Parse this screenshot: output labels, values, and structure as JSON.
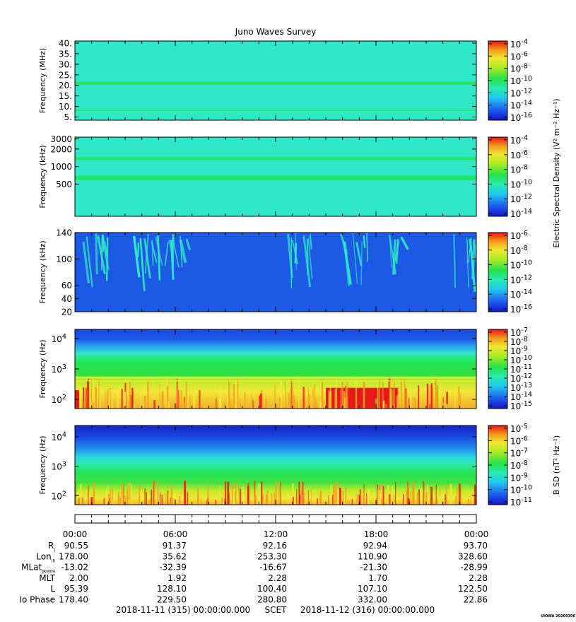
{
  "title": "Juno Waves Survey",
  "watermark": "UIOWA 20200306",
  "colors": {
    "background_cyan": "#2ee8c8",
    "band_green": "#22e65c",
    "deep_blue": "#1c5ae6",
    "dark_blue": "#1030d8",
    "yellow": "#f2e838",
    "orange": "#f2a020",
    "red": "#e81818"
  },
  "chart_data": [
    {
      "id": "panel1",
      "type": "heatmap",
      "ylabel": "Frequency (MHz)",
      "yscale": "linear",
      "ylim": [
        3.5,
        41
      ],
      "y_ticks": [
        {
          "label": "40.",
          "value": 40
        },
        {
          "label": "35.",
          "value": 35
        },
        {
          "label": "30.",
          "value": 30
        },
        {
          "label": "25.",
          "value": 25
        },
        {
          "label": "20.",
          "value": 20
        },
        {
          "label": "15.",
          "value": 15
        },
        {
          "label": "10.",
          "value": 10
        },
        {
          "label": "5.",
          "value": 5
        }
      ],
      "features": [
        {
          "kind": "band",
          "y_from": 20.3,
          "y_to": 21.8,
          "color": "band_green"
        },
        {
          "kind": "band",
          "y_from": 8.0,
          "y_to": 8.6,
          "color": "band_green"
        }
      ],
      "colorbar": {
        "ticks": [
          {
            "base": "10",
            "exp": "-4"
          },
          {
            "base": "10",
            "exp": "-6"
          },
          {
            "base": "10",
            "exp": "-8"
          },
          {
            "base": "10",
            "exp": "-10"
          },
          {
            "base": "10",
            "exp": "-12"
          },
          {
            "base": "10",
            "exp": "-14"
          },
          {
            "base": "10",
            "exp": "-16"
          }
        ]
      }
    },
    {
      "id": "panel2",
      "type": "heatmap",
      "ylabel": "Frequency (kHz)",
      "yscale": "log",
      "ylim": [
        140,
        3200
      ],
      "y_ticks": [
        {
          "label": "3000",
          "value": 3000
        },
        {
          "label": "2000",
          "value": 2000
        },
        {
          "label": "1000",
          "value": 1000
        },
        {
          "label": "500",
          "value": 500
        }
      ],
      "features": [
        {
          "kind": "band",
          "y_from": 1290,
          "y_to": 1450,
          "color": "band_green"
        },
        {
          "kind": "band",
          "y_from": 590,
          "y_to": 700,
          "color": "band_green"
        }
      ],
      "colorbar": {
        "ticks": [
          {
            "base": "10",
            "exp": "-4"
          },
          {
            "base": "10",
            "exp": "-6"
          },
          {
            "base": "10",
            "exp": "-8"
          },
          {
            "base": "10",
            "exp": "-10"
          },
          {
            "base": "10",
            "exp": "-12"
          },
          {
            "base": "10",
            "exp": "-14"
          }
        ]
      }
    },
    {
      "id": "panel3",
      "type": "heatmap",
      "ylabel": "Frequency (kHz)",
      "yscale": "linear",
      "ylim": [
        20,
        140
      ],
      "y_ticks": [
        {
          "label": "140",
          "value": 140
        },
        {
          "label": "100",
          "value": 100
        },
        {
          "label": "60",
          "value": 60
        },
        {
          "label": "40",
          "value": 40
        },
        {
          "label": "20",
          "value": 20
        }
      ],
      "features": [
        {
          "kind": "bursts",
          "from_hour": 0.2,
          "to_hour": 2.0,
          "color": "background_cyan"
        },
        {
          "kind": "bursts",
          "from_hour": 3.5,
          "to_hour": 7.0,
          "color": "background_cyan"
        },
        {
          "kind": "bursts",
          "from_hour": 12.5,
          "to_hour": 14.5,
          "color": "background_cyan"
        },
        {
          "kind": "bursts",
          "from_hour": 15.5,
          "to_hour": 17.5,
          "color": "background_cyan"
        },
        {
          "kind": "bursts",
          "from_hour": 18.5,
          "to_hour": 19.8,
          "color": "background_cyan"
        },
        {
          "kind": "bursts",
          "from_hour": 22.5,
          "to_hour": 23.9,
          "color": "background_cyan"
        }
      ],
      "colorbar": {
        "label": "Electric Spectral Density (V² m⁻² Hz⁻¹)",
        "ticks": [
          {
            "base": "10",
            "exp": "-6"
          },
          {
            "base": "10",
            "exp": "-8"
          },
          {
            "base": "10",
            "exp": "-10"
          },
          {
            "base": "10",
            "exp": "-12"
          },
          {
            "base": "10",
            "exp": "-14"
          },
          {
            "base": "10",
            "exp": "-16"
          }
        ]
      }
    },
    {
      "id": "panel4",
      "type": "heatmap",
      "ylabel": "Frequency (Hz)",
      "yscale": "log",
      "ylim": [
        50,
        20000
      ],
      "y_ticks": [
        {
          "base": "10",
          "exp": "4",
          "value": 10000
        },
        {
          "base": "10",
          "exp": "3",
          "value": 1000
        },
        {
          "base": "10",
          "exp": "2",
          "value": 100
        }
      ],
      "features": [
        {
          "kind": "layer",
          "y_from": 3000,
          "y_to": 20000,
          "color": "deep_blue"
        },
        {
          "kind": "layer",
          "y_from": 1500,
          "y_to": 3000,
          "color": "background_cyan"
        },
        {
          "kind": "layer",
          "y_from": 300,
          "y_to": 1500,
          "color": "band_green"
        },
        {
          "kind": "layer",
          "y_from": 50,
          "y_to": 300,
          "color": "yellow"
        },
        {
          "kind": "block",
          "from_hour": 15.0,
          "to_hour": 19.3,
          "y_from": 50,
          "y_to": 240,
          "color": "red"
        },
        {
          "kind": "block",
          "from_hour": 0.0,
          "to_hour": 0.25,
          "y_from": 50,
          "y_to": 200,
          "color": "red"
        }
      ],
      "colorbar": {
        "ticks": [
          {
            "base": "10",
            "exp": "-7"
          },
          {
            "base": "10",
            "exp": "-8"
          },
          {
            "base": "10",
            "exp": "-9"
          },
          {
            "base": "10",
            "exp": "-10"
          },
          {
            "base": "10",
            "exp": "-11"
          },
          {
            "base": "10",
            "exp": "-12"
          },
          {
            "base": "10",
            "exp": "-13"
          },
          {
            "base": "10",
            "exp": "-14"
          },
          {
            "base": "10",
            "exp": "-15"
          }
        ]
      }
    },
    {
      "id": "panel5",
      "type": "heatmap",
      "ylabel": "Frequency (Hz)",
      "yscale": "log",
      "ylim": [
        50,
        24000
      ],
      "y_ticks": [
        {
          "base": "10",
          "exp": "4",
          "value": 10000
        },
        {
          "base": "10",
          "exp": "3",
          "value": 1000
        },
        {
          "base": "10",
          "exp": "2",
          "value": 100
        }
      ],
      "features": [
        {
          "kind": "layer",
          "y_from": 9000,
          "y_to": 24000,
          "color": "dark_blue"
        },
        {
          "kind": "layer",
          "y_from": 3500,
          "y_to": 9000,
          "color": "deep_blue"
        },
        {
          "kind": "layer",
          "y_from": 1500,
          "y_to": 3500,
          "color": "background_cyan"
        },
        {
          "kind": "layer",
          "y_from": 200,
          "y_to": 1500,
          "color": "band_green"
        },
        {
          "kind": "layer",
          "y_from": 50,
          "y_to": 200,
          "color": "yellow"
        }
      ],
      "colorbar": {
        "label": "B SD (nT² Hz⁻¹)",
        "ticks": [
          {
            "base": "10",
            "exp": "-5"
          },
          {
            "base": "10",
            "exp": "-6"
          },
          {
            "base": "10",
            "exp": "-7"
          },
          {
            "base": "10",
            "exp": "-8"
          },
          {
            "base": "10",
            "exp": "-9"
          },
          {
            "base": "10",
            "exp": "-10"
          },
          {
            "base": "10",
            "exp": "-11"
          }
        ]
      }
    }
  ],
  "time_axis": {
    "hours": [
      0,
      6,
      12,
      18,
      24
    ],
    "tick_labels": [
      "00:00",
      "06:00",
      "12:00",
      "18:00",
      "00:00"
    ]
  },
  "ephemeris": [
    {
      "label": "R",
      "sub": "J",
      "values": [
        "90.55",
        "91.37",
        "92.16",
        "92.94",
        "93.70"
      ]
    },
    {
      "label": "Lon",
      "sub": "III",
      "values": [
        "178.00",
        "35.62",
        "253.30",
        "110.90",
        "328.60"
      ]
    },
    {
      "label": "MLat",
      "sub": "JRM09",
      "values": [
        "-13.02",
        "-32.39",
        "-16.67",
        "-21.30",
        "-28.99"
      ]
    },
    {
      "label": "MLT",
      "sub": "",
      "values": [
        "2.00",
        "1.92",
        "2.28",
        "1.70",
        "2.28"
      ]
    },
    {
      "label": "L",
      "sub": "",
      "values": [
        "95.39",
        "128.10",
        "100.40",
        "107.10",
        "122.50"
      ]
    },
    {
      "label": "Io Phase",
      "sub": "",
      "values": [
        "178.40",
        "229.50",
        "280.80",
        "332.00",
        "22.86"
      ]
    }
  ],
  "footer": {
    "start": "2018-11-11 (315) 00:00:00.000",
    "scet": "SCET",
    "end": "2018-11-12 (316) 00:00:00.000"
  }
}
